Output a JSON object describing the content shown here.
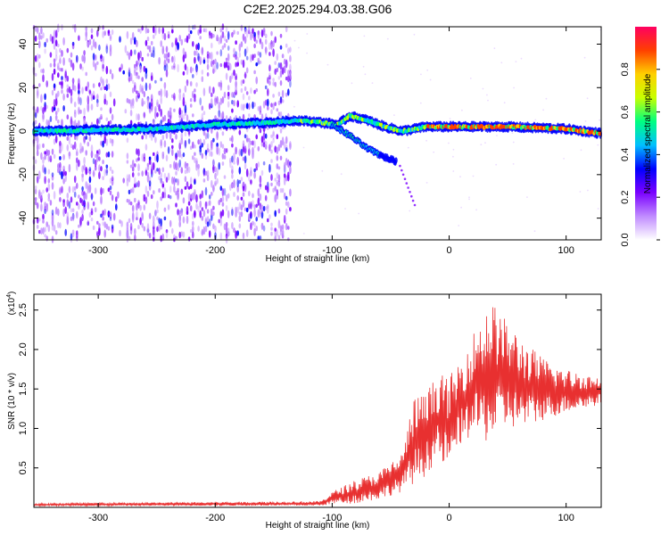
{
  "title": "C2E2.2025.294.03.38.G06",
  "chart_data": [
    {
      "type": "heatmap",
      "title": "C2E2.2025.294.03.38.G06",
      "xlabel": "Height of straight line (km)",
      "ylabel": "Frequency (Hz)",
      "xlim": [
        -355,
        130
      ],
      "ylim": [
        -50,
        48
      ],
      "xticks": [
        -300,
        -200,
        -100,
        0,
        100
      ],
      "yticks": [
        -40,
        -20,
        0,
        20,
        40
      ],
      "ridge": [
        {
          "x": -350,
          "f": 0
        },
        {
          "x": -250,
          "f": 1
        },
        {
          "x": -200,
          "f": 3
        },
        {
          "x": -150,
          "f": 4
        },
        {
          "x": -130,
          "f": 5
        },
        {
          "x": -110,
          "f": 4
        },
        {
          "x": -95,
          "f": 3
        },
        {
          "x": -85,
          "f": 7
        },
        {
          "x": -70,
          "f": 5
        },
        {
          "x": -55,
          "f": 2
        },
        {
          "x": -40,
          "f": 0
        },
        {
          "x": -20,
          "f": 2
        },
        {
          "x": 0,
          "f": 2
        },
        {
          "x": 50,
          "f": 2
        },
        {
          "x": 100,
          "f": 1
        },
        {
          "x": 130,
          "f": -1
        }
      ],
      "branch": [
        {
          "x": -100,
          "f": 3
        },
        {
          "x": -85,
          "f": -2
        },
        {
          "x": -70,
          "f": -8
        },
        {
          "x": -55,
          "f": -12
        },
        {
          "x": -45,
          "f": -14
        }
      ],
      "noise_region_xmax": -135,
      "colorbar": {
        "label": "Normalized spectral amplitude",
        "range": [
          0.0,
          1.0
        ],
        "ticks": [
          "0.0",
          "0.2",
          "0.4",
          "0.6",
          "0.8"
        ],
        "colors": [
          "#ffffff",
          "#c08bff",
          "#7a00ff",
          "#0000ff",
          "#00bfff",
          "#00ff80",
          "#c8ff00",
          "#ffd000",
          "#ff4000",
          "#ff0060"
        ]
      }
    },
    {
      "type": "line",
      "xlabel": "Height of straight line (km)",
      "ylabel": "SNR (10 * v/v)",
      "yscale_label": "(x10",
      "yscale_exp": "4",
      "yscale_close": ")",
      "xlim": [
        -355,
        130
      ],
      "ylim": [
        0,
        27000
      ],
      "xticks": [
        -300,
        -200,
        -100,
        0,
        100
      ],
      "yticks": [
        5000,
        10000,
        15000,
        20000,
        25000
      ],
      "ytick_labels": [
        "0.5",
        "1.0",
        "1.5",
        "2.0",
        "2.5"
      ],
      "color": "#e83030",
      "envelope": [
        {
          "x": -355,
          "lo": 200,
          "hi": 500
        },
        {
          "x": -110,
          "lo": 200,
          "hi": 800
        },
        {
          "x": -100,
          "lo": 400,
          "hi": 2000
        },
        {
          "x": -80,
          "lo": 500,
          "hi": 3500
        },
        {
          "x": -60,
          "lo": 1000,
          "hi": 4500
        },
        {
          "x": -40,
          "lo": 2000,
          "hi": 7000
        },
        {
          "x": -30,
          "lo": 3000,
          "hi": 14000
        },
        {
          "x": -20,
          "lo": 4000,
          "hi": 14500
        },
        {
          "x": -10,
          "lo": 6000,
          "hi": 17000
        },
        {
          "x": 0,
          "lo": 4500,
          "hi": 16500
        },
        {
          "x": 10,
          "lo": 8000,
          "hi": 19000
        },
        {
          "x": 20,
          "lo": 9000,
          "hi": 22000
        },
        {
          "x": 35,
          "lo": 8000,
          "hi": 26500
        },
        {
          "x": 50,
          "lo": 10000,
          "hi": 23500
        },
        {
          "x": 65,
          "lo": 10000,
          "hi": 21000
        },
        {
          "x": 80,
          "lo": 11000,
          "hi": 19000
        },
        {
          "x": 100,
          "lo": 12000,
          "hi": 17500
        },
        {
          "x": 130,
          "lo": 13000,
          "hi": 16500
        }
      ]
    }
  ]
}
